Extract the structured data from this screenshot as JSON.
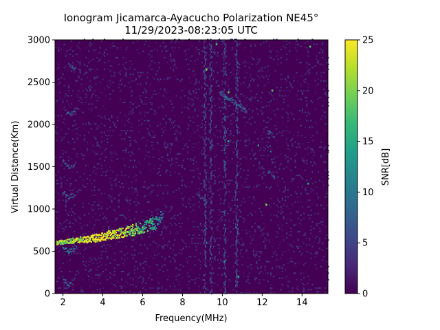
{
  "chart_data": {
    "type": "heatmap",
    "title_line1": "Ionogram Jicamarca-Ayacucho Polarization NE45°",
    "title_line2": "11/29/2023-08:23:05 UTC",
    "xlabel": "Frequency(MHz)",
    "ylabel": "Virtual Distance(Km)",
    "colorbar_label": "SNR[dB]",
    "xlim": [
      1.6,
      15.3
    ],
    "ylim": [
      0,
      3000
    ],
    "clim": [
      0,
      25
    ],
    "x_ticks": [
      2,
      4,
      6,
      8,
      10,
      12,
      14
    ],
    "y_ticks": [
      0,
      500,
      1000,
      1500,
      2000,
      2500,
      3000
    ],
    "c_ticks": [
      0,
      5,
      10,
      15,
      20,
      25
    ],
    "colormap": "viridis",
    "colormap_stops": [
      "#440154",
      "#482878",
      "#3e4989",
      "#31688e",
      "#26828e",
      "#1f9e89",
      "#35b779",
      "#6ece58",
      "#b5de2b",
      "#fde725"
    ],
    "echo_traces": [
      {
        "name": "main-trace",
        "points": [
          [
            1.7,
            600,
            20
          ],
          [
            2.5,
            625,
            22
          ],
          [
            3.5,
            650,
            24
          ],
          [
            4.5,
            700,
            24
          ],
          [
            5.5,
            750,
            20
          ],
          [
            6.5,
            820,
            14
          ],
          [
            7.0,
            900,
            8
          ]
        ]
      },
      {
        "name": "lower-hook",
        "points": [
          [
            2.0,
            560,
            8
          ],
          [
            2.3,
            500,
            8
          ],
          [
            2.7,
            540,
            6
          ]
        ]
      },
      {
        "name": "upper-hook-1",
        "points": [
          [
            2.0,
            1200,
            7
          ],
          [
            2.3,
            1140,
            7
          ],
          [
            2.6,
            1170,
            6
          ]
        ]
      },
      {
        "name": "upper-hook-2",
        "points": [
          [
            2.0,
            1560,
            6
          ],
          [
            2.3,
            1500,
            6
          ],
          [
            2.6,
            1520,
            5
          ]
        ]
      },
      {
        "name": "upper-hook-3",
        "points": [
          [
            2.1,
            2150,
            6
          ],
          [
            2.4,
            2120,
            6
          ],
          [
            2.7,
            2180,
            5
          ]
        ]
      },
      {
        "name": "upper-hook-4",
        "points": [
          [
            2.3,
            2700,
            5
          ],
          [
            2.6,
            2650,
            5
          ]
        ]
      },
      {
        "name": "dip-echoes",
        "points": [
          [
            2.0,
            150,
            6
          ],
          [
            2.3,
            100,
            6
          ],
          [
            2.6,
            180,
            5
          ]
        ]
      },
      {
        "name": "fragment-9mhz",
        "points": [
          [
            8.8,
            1180,
            7
          ],
          [
            9.0,
            1120,
            6
          ],
          [
            9.2,
            1090,
            6
          ]
        ]
      },
      {
        "name": "fragment-12mhz",
        "points": [
          [
            12.3,
            1450,
            7
          ],
          [
            12.6,
            1380,
            7
          ],
          [
            12.3,
            1900,
            6
          ],
          [
            12.6,
            1860,
            6
          ]
        ]
      },
      {
        "name": "fragment-10mhz",
        "points": [
          [
            10.8,
            2300,
            6
          ],
          [
            11.0,
            2200,
            6
          ],
          [
            11.2,
            2150,
            6
          ],
          [
            9.9,
            2380,
            7
          ],
          [
            10.1,
            2330,
            6
          ]
        ]
      }
    ],
    "vertical_bands_mhz": [
      9.1,
      9.4,
      10.1,
      10.7
    ],
    "speckles": [
      [
        9.2,
        2650,
        20
      ],
      [
        9.7,
        2950,
        18
      ],
      [
        10.3,
        2380,
        19
      ],
      [
        12.5,
        2400,
        18
      ],
      [
        14.4,
        2920,
        18
      ],
      [
        10.3,
        1800,
        15
      ],
      [
        12.2,
        1050,
        20
      ],
      [
        9.2,
        600,
        10
      ],
      [
        10.1,
        380,
        14
      ],
      [
        10.8,
        200,
        16
      ],
      [
        14.3,
        1300,
        14
      ],
      [
        11.8,
        1750,
        13
      ]
    ]
  }
}
